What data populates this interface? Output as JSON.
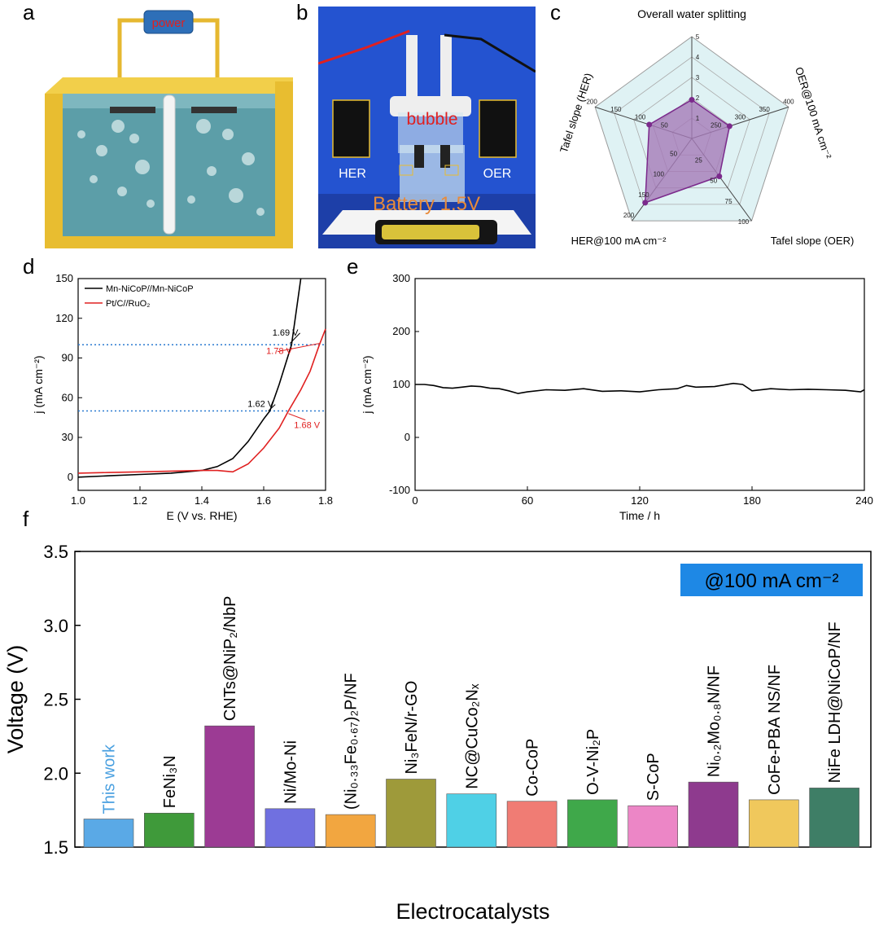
{
  "panel_labels": {
    "a": "a",
    "b": "b",
    "c": "c",
    "d": "d",
    "e": "e",
    "f": "f"
  },
  "panel_a": {
    "power_label": "power"
  },
  "panel_b": {
    "bubble_label": "bubble",
    "her_label": "HER",
    "oer_label": "OER",
    "battery_label": "Battery 1.5V"
  },
  "chart_data": [
    {
      "id": "c",
      "type": "radar",
      "title": "Overall water splitting",
      "axes": [
        {
          "label": "Overall water splitting",
          "ticks": [
            "1",
            "2",
            "3",
            "4",
            "5"
          ],
          "value": 1.9
        },
        {
          "label": "OER@100 mA cm⁻²",
          "ticks": [
            "250",
            "300",
            "350",
            "400"
          ],
          "value": 1.95
        },
        {
          "label": "Tafel slope (OER)",
          "ticks": [
            "25",
            "50",
            "75",
            "100"
          ],
          "value": 2.3
        },
        {
          "label": "HER@100 mA cm⁻²",
          "ticks": [
            "50",
            "100",
            "150",
            "200"
          ],
          "value": 3.9
        },
        {
          "label": "Tafel slope (HER)",
          "ticks": [
            "50",
            "100",
            "150",
            "200"
          ],
          "value": 2.2
        }
      ],
      "colors": {
        "fill": "#a57ab8",
        "line": "#7b2a8c",
        "bg": "#dff2f4"
      }
    },
    {
      "id": "d",
      "type": "line",
      "xlabel": "E (V vs. RHE)",
      "ylabel": "j (mA cm⁻²)",
      "xlim": [
        1.0,
        1.8
      ],
      "ylim": [
        -10,
        150
      ],
      "xticks": [
        "1.0",
        "1.2",
        "1.4",
        "1.6",
        "1.8"
      ],
      "yticks": [
        "0",
        "30",
        "60",
        "90",
        "120",
        "150"
      ],
      "series": [
        {
          "name": "Mn-NiCoP//Mn-NiCoP",
          "color": "#000000",
          "x": [
            1.0,
            1.1,
            1.2,
            1.3,
            1.4,
            1.45,
            1.5,
            1.55,
            1.6,
            1.62,
            1.65,
            1.69,
            1.72
          ],
          "y": [
            0,
            1,
            2,
            3,
            5,
            8,
            14,
            27,
            44,
            50,
            70,
            100,
            150
          ]
        },
        {
          "name": "Pt/C//RuO₂",
          "color": "#e02020",
          "x": [
            1.0,
            1.1,
            1.2,
            1.3,
            1.4,
            1.45,
            1.5,
            1.55,
            1.6,
            1.65,
            1.68,
            1.72,
            1.75,
            1.78,
            1.8
          ],
          "y": [
            3,
            3.5,
            4,
            4.5,
            5,
            5,
            4,
            10,
            22,
            37,
            50,
            66,
            80,
            100,
            112
          ]
        }
      ],
      "hlines": [
        100,
        50
      ],
      "annotations": [
        {
          "text": "1.69 V",
          "color": "#000000"
        },
        {
          "text": "1.78 V",
          "color": "#e02020"
        },
        {
          "text": "1.62 V",
          "color": "#000000"
        },
        {
          "text": "1.68 V",
          "color": "#e02020"
        }
      ]
    },
    {
      "id": "e",
      "type": "line",
      "xlabel": "Time / h",
      "ylabel": "j (mA cm⁻²)",
      "xlim": [
        0,
        240
      ],
      "ylim": [
        -100,
        300
      ],
      "xticks": [
        "0",
        "60",
        "120",
        "180",
        "240"
      ],
      "yticks": [
        "-100",
        "0",
        "100",
        "200",
        "300"
      ],
      "series": [
        {
          "color": "#000000",
          "x": [
            0,
            5,
            10,
            15,
            20,
            25,
            30,
            35,
            40,
            45,
            50,
            55,
            60,
            70,
            80,
            90,
            100,
            110,
            120,
            130,
            140,
            145,
            150,
            160,
            170,
            175,
            180,
            190,
            200,
            210,
            220,
            230,
            238,
            240
          ],
          "y": [
            100,
            100,
            98,
            94,
            93,
            95,
            97,
            96,
            93,
            92,
            88,
            83,
            86,
            90,
            89,
            92,
            87,
            88,
            86,
            90,
            92,
            98,
            95,
            96,
            102,
            100,
            88,
            92,
            90,
            91,
            90,
            89,
            86,
            90
          ]
        }
      ]
    },
    {
      "id": "f",
      "type": "bar",
      "xlabel": "Electrocatalysts",
      "ylabel": "Voltage (V)",
      "ylim": [
        1.5,
        3.5
      ],
      "yticks": [
        "1.5",
        "2.0",
        "2.5",
        "3.0",
        "3.5"
      ],
      "annotation": "@100 mA cm⁻²",
      "categories": [
        "This work",
        "FeNi₃N",
        "CNTs@NiP₂/NbP",
        "Ni/Mo-Ni",
        "(Ni₀.₃₃Fe₀.₆₇)₂P/NF",
        "Ni₃FeN/r-GO",
        "NC@CuCo₂Nₓ",
        "Co-CoP",
        "O-V-Ni₂P",
        "S-CoP",
        "Ni₀.₂Mo₀.₈N/NF",
        "CoFe-PBA NS/NF",
        "NiFe LDH@NiCoP/NF"
      ],
      "values": [
        1.69,
        1.73,
        2.32,
        1.76,
        1.72,
        1.96,
        1.86,
        1.81,
        1.82,
        1.78,
        1.94,
        1.82,
        1.9
      ],
      "colors": [
        "#5aa9e6",
        "#3f9a3a",
        "#9c3b94",
        "#7070e0",
        "#f2a640",
        "#9e9a3a",
        "#4fd0e6",
        "#f07c74",
        "#3fa84a",
        "#ec86c6",
        "#8e3a8e",
        "#f0c85c",
        "#3e7e66"
      ],
      "label_colors": [
        "#4aa0e0",
        "#000000",
        "#000000",
        "#000000",
        "#000000",
        "#000000",
        "#000000",
        "#000000",
        "#000000",
        "#000000",
        "#000000",
        "#000000",
        "#000000"
      ],
      "annotation_color": "#1e88e5"
    }
  ]
}
